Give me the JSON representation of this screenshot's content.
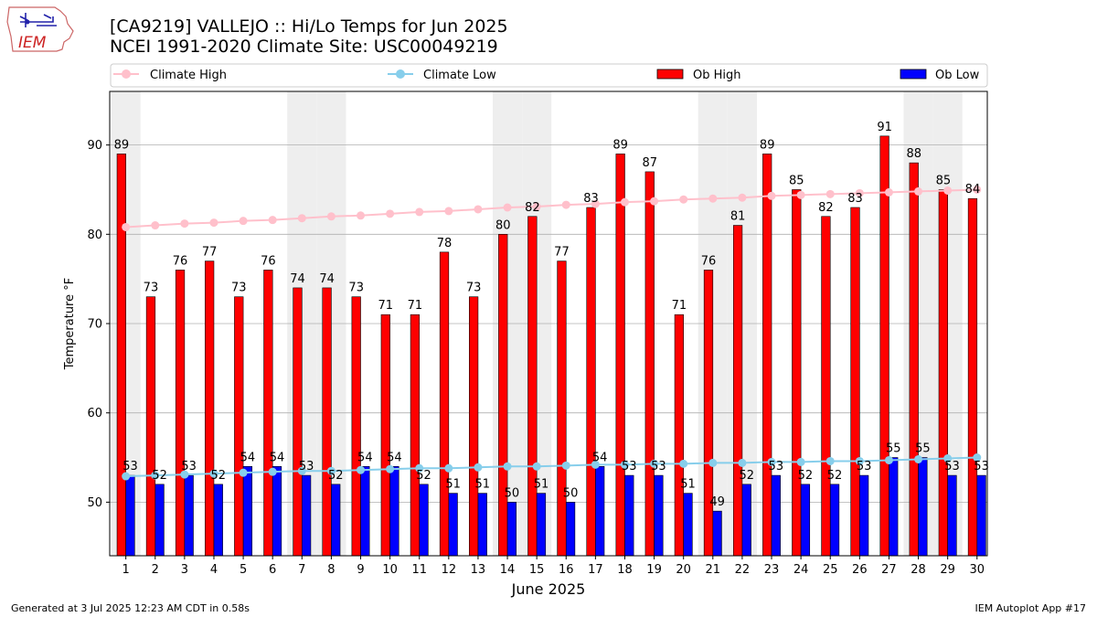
{
  "header": {
    "title_line1": "[CA9219] VALLEJO :: Hi/Lo Temps for Jun 2025",
    "title_line2": "NCEI 1991-2020 Climate Site: USC00049219",
    "logo_text": "IEM"
  },
  "footer": {
    "generated": "Generated at 3 Jul 2025 12:23 AM CDT in 0.58s",
    "app": "IEM Autoplot App #17"
  },
  "colors": {
    "ob_high": "#ff0000",
    "ob_low": "#0000ff",
    "climate_high": "#ffc0cb",
    "climate_low": "#87ceeb",
    "weekend_band": "#eeeeee",
    "grid": "#b0b0b0"
  },
  "chart_data": {
    "type": "bar",
    "xlabel": "June 2025",
    "ylabel": "Temperature °F",
    "ylim": [
      44,
      96
    ],
    "yticks": [
      50,
      60,
      70,
      80,
      90
    ],
    "grid": "horizontal",
    "legend_position": "top",
    "categories": [
      1,
      2,
      3,
      4,
      5,
      6,
      7,
      8,
      9,
      10,
      11,
      12,
      13,
      14,
      15,
      16,
      17,
      18,
      19,
      20,
      21,
      22,
      23,
      24,
      25,
      26,
      27,
      28,
      29,
      30
    ],
    "weekend_days": [
      1,
      7,
      8,
      14,
      15,
      21,
      22,
      28,
      29
    ],
    "series": [
      {
        "name": "Climate High",
        "kind": "line",
        "values": [
          80.8,
          81.0,
          81.2,
          81.3,
          81.5,
          81.6,
          81.8,
          82.0,
          82.1,
          82.3,
          82.5,
          82.6,
          82.8,
          83.0,
          83.1,
          83.3,
          83.4,
          83.6,
          83.7,
          83.9,
          84.0,
          84.1,
          84.3,
          84.4,
          84.5,
          84.6,
          84.7,
          84.8,
          84.9,
          85.0
        ]
      },
      {
        "name": "Climate Low",
        "kind": "line",
        "values": [
          52.9,
          53.0,
          53.1,
          53.2,
          53.3,
          53.4,
          53.5,
          53.5,
          53.6,
          53.7,
          53.8,
          53.8,
          53.9,
          54.0,
          54.0,
          54.1,
          54.2,
          54.2,
          54.3,
          54.3,
          54.4,
          54.4,
          54.5,
          54.5,
          54.6,
          54.6,
          54.7,
          54.8,
          54.9,
          55.0
        ]
      },
      {
        "name": "Ob High",
        "kind": "bar",
        "values": [
          89,
          73,
          76,
          77,
          73,
          76,
          74,
          74,
          73,
          71,
          71,
          78,
          73,
          80,
          82,
          77,
          83,
          89,
          87,
          71,
          76,
          81,
          89,
          85,
          82,
          83,
          91,
          88,
          85,
          84
        ]
      },
      {
        "name": "Ob Low",
        "kind": "bar",
        "values": [
          53,
          52,
          53,
          52,
          54,
          54,
          53,
          52,
          54,
          54,
          52,
          51,
          51,
          50,
          51,
          50,
          54,
          53,
          53,
          51,
          49,
          52,
          53,
          52,
          52,
          53,
          55,
          55,
          53,
          53
        ]
      }
    ]
  }
}
